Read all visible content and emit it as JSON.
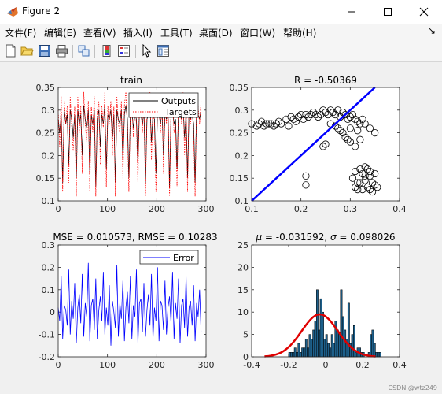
{
  "window": {
    "title": "Figure 2"
  },
  "menu": [
    "文件(F)",
    "编辑(E)",
    "查看(V)",
    "插入(I)",
    "工具(T)",
    "桌面(D)",
    "窗口(W)",
    "帮助(H)"
  ],
  "toolbar_icons": [
    "new-figure-icon",
    "open-file-icon",
    "save-icon",
    "print-icon",
    "link-plot-icon",
    "colorbar-icon",
    "legend-icon",
    "edit-plot-arrow-icon",
    "property-inspector-icon"
  ],
  "watermark": "CSDN @wtz249",
  "colors": {
    "black": "#000000",
    "red_dotted": "#ff0000",
    "blue": "#0000ff",
    "bar_fill": "#1d5f8a",
    "fit_red": "#e00000"
  },
  "chart_data": [
    {
      "type": "line",
      "title": "train",
      "xlim": [
        0,
        300
      ],
      "ylim": [
        0.1,
        0.35
      ],
      "xticks": [
        "0",
        "100",
        "200",
        "300"
      ],
      "yticks": [
        "0.1",
        "0.15",
        "0.2",
        "0.25",
        "0.3",
        "0.35"
      ],
      "legend": {
        "position": "top-right",
        "entries": [
          "Outputs",
          "Targets"
        ]
      },
      "series": [
        {
          "name": "Outputs",
          "style": "solid black",
          "values": [
            0.28,
            0.25,
            0.29,
            0.14,
            0.3,
            0.27,
            0.29,
            0.18,
            0.3,
            0.28,
            0.24,
            0.29,
            0.15,
            0.3,
            0.27,
            0.29,
            0.2,
            0.31,
            0.28,
            0.26,
            0.3,
            0.16,
            0.29,
            0.27,
            0.3,
            0.13,
            0.28,
            0.3,
            0.22,
            0.29,
            0.27,
            0.31,
            0.17,
            0.29,
            0.28,
            0.3,
            0.24,
            0.29,
            0.14,
            0.3,
            0.28,
            0.27,
            0.3,
            0.19,
            0.29,
            0.31,
            0.28,
            0.15,
            0.29,
            0.3,
            0.26,
            0.29,
            0.28,
            0.18,
            0.3,
            0.29,
            0.27,
            0.3,
            0.14,
            0.28,
            0.29,
            0.31,
            0.23,
            0.29,
            0.28,
            0.16,
            0.3,
            0.29,
            0.27,
            0.3,
            0.2,
            0.29,
            0.28,
            0.3,
            0.13,
            0.29,
            0.3,
            0.27,
            0.28,
            0.17,
            0.3,
            0.29,
            0.28,
            0.31,
            0.24,
            0.29,
            0.15,
            0.3,
            0.28,
            0.29,
            0.27,
            0.14,
            0.3,
            0.29,
            0.28,
            0.3
          ]
        },
        {
          "name": "Targets",
          "style": "dotted red",
          "values": [
            0.3,
            0.22,
            0.33,
            0.12,
            0.32,
            0.27,
            0.31,
            0.14,
            0.33,
            0.26,
            0.21,
            0.31,
            0.11,
            0.33,
            0.25,
            0.31,
            0.16,
            0.34,
            0.27,
            0.23,
            0.32,
            0.12,
            0.31,
            0.25,
            0.33,
            0.11,
            0.3,
            0.32,
            0.18,
            0.31,
            0.26,
            0.34,
            0.13,
            0.31,
            0.27,
            0.32,
            0.2,
            0.31,
            0.11,
            0.33,
            0.27,
            0.25,
            0.32,
            0.15,
            0.31,
            0.34,
            0.26,
            0.12,
            0.31,
            0.33,
            0.24,
            0.31,
            0.27,
            0.14,
            0.32,
            0.31,
            0.25,
            0.33,
            0.11,
            0.3,
            0.31,
            0.34,
            0.19,
            0.31,
            0.27,
            0.12,
            0.32,
            0.31,
            0.25,
            0.33,
            0.16,
            0.31,
            0.27,
            0.32,
            0.11,
            0.31,
            0.33,
            0.25,
            0.27,
            0.13,
            0.32,
            0.31,
            0.27,
            0.34,
            0.2,
            0.31,
            0.12,
            0.33,
            0.27,
            0.31,
            0.25,
            0.11,
            0.32,
            0.31,
            0.27,
            0.32
          ]
        }
      ]
    },
    {
      "type": "scatter",
      "title": "R = -0.50369",
      "xlim": [
        0.1,
        0.4
      ],
      "ylim": [
        0.1,
        0.35
      ],
      "xticks": [
        "0.1",
        "0.2",
        "0.3",
        "0.4"
      ],
      "yticks": [
        "0.1",
        "0.15",
        "0.2",
        "0.25",
        "0.3",
        "0.35"
      ],
      "fit_line": {
        "from": [
          0.1,
          0.1
        ],
        "to": [
          0.35,
          0.35
        ]
      },
      "points": [
        [
          0.1,
          0.27
        ],
        [
          0.11,
          0.265
        ],
        [
          0.115,
          0.27
        ],
        [
          0.12,
          0.275
        ],
        [
          0.125,
          0.265
        ],
        [
          0.13,
          0.27
        ],
        [
          0.135,
          0.27
        ],
        [
          0.14,
          0.27
        ],
        [
          0.145,
          0.265
        ],
        [
          0.15,
          0.27
        ],
        [
          0.155,
          0.275
        ],
        [
          0.16,
          0.27
        ],
        [
          0.17,
          0.28
        ],
        [
          0.175,
          0.265
        ],
        [
          0.18,
          0.285
        ],
        [
          0.185,
          0.28
        ],
        [
          0.19,
          0.275
        ],
        [
          0.195,
          0.285
        ],
        [
          0.2,
          0.29
        ],
        [
          0.205,
          0.28
        ],
        [
          0.21,
          0.29
        ],
        [
          0.215,
          0.285
        ],
        [
          0.22,
          0.29
        ],
        [
          0.225,
          0.295
        ],
        [
          0.23,
          0.29
        ],
        [
          0.235,
          0.285
        ],
        [
          0.24,
          0.29
        ],
        [
          0.245,
          0.3
        ],
        [
          0.25,
          0.295
        ],
        [
          0.255,
          0.29
        ],
        [
          0.26,
          0.3
        ],
        [
          0.265,
          0.295
        ],
        [
          0.27,
          0.29
        ],
        [
          0.275,
          0.3
        ],
        [
          0.28,
          0.285
        ],
        [
          0.285,
          0.295
        ],
        [
          0.29,
          0.29
        ],
        [
          0.295,
          0.28
        ],
        [
          0.3,
          0.285
        ],
        [
          0.305,
          0.29
        ],
        [
          0.31,
          0.28
        ],
        [
          0.315,
          0.275
        ],
        [
          0.32,
          0.27
        ],
        [
          0.325,
          0.28
        ],
        [
          0.33,
          0.27
        ],
        [
          0.34,
          0.26
        ],
        [
          0.35,
          0.25
        ],
        [
          0.26,
          0.27
        ],
        [
          0.27,
          0.265
        ],
        [
          0.275,
          0.26
        ],
        [
          0.28,
          0.255
        ],
        [
          0.285,
          0.25
        ],
        [
          0.29,
          0.24
        ],
        [
          0.295,
          0.235
        ],
        [
          0.3,
          0.23
        ],
        [
          0.31,
          0.22
        ],
        [
          0.315,
          0.255
        ],
        [
          0.3,
          0.26
        ],
        [
          0.32,
          0.235
        ],
        [
          0.245,
          0.22
        ],
        [
          0.25,
          0.225
        ],
        [
          0.21,
          0.155
        ],
        [
          0.21,
          0.135
        ],
        [
          0.305,
          0.15
        ],
        [
          0.31,
          0.13
        ],
        [
          0.315,
          0.125
        ],
        [
          0.32,
          0.14
        ],
        [
          0.325,
          0.16
        ],
        [
          0.33,
          0.145
        ],
        [
          0.335,
          0.13
        ],
        [
          0.34,
          0.155
        ],
        [
          0.345,
          0.12
        ],
        [
          0.35,
          0.135
        ],
        [
          0.32,
          0.17
        ],
        [
          0.33,
          0.175
        ],
        [
          0.34,
          0.165
        ],
        [
          0.345,
          0.14
        ],
        [
          0.31,
          0.165
        ],
        [
          0.325,
          0.125
        ],
        [
          0.335,
          0.17
        ],
        [
          0.35,
          0.16
        ],
        [
          0.355,
          0.13
        ],
        [
          0.315,
          0.14
        ],
        [
          0.34,
          0.125
        ],
        [
          0.33,
          0.155
        ]
      ]
    },
    {
      "type": "line",
      "title": "MSE = 0.010573, RMSE = 0.10283",
      "xlim": [
        0,
        300
      ],
      "ylim": [
        -0.2,
        0.3
      ],
      "xticks": [
        "0",
        "100",
        "200",
        "300"
      ],
      "yticks": [
        "-0.2",
        "-0.1",
        "0",
        "0.1",
        "0.2",
        "0.3"
      ],
      "legend": {
        "position": "top-right",
        "entries": [
          "Error"
        ]
      },
      "series": [
        {
          "name": "Error",
          "style": "solid blue",
          "values": [
            0.02,
            -0.04,
            0.16,
            -0.12,
            0.03,
            0.01,
            -0.06,
            0.19,
            -0.1,
            0.05,
            -0.03,
            0.13,
            -0.14,
            0.02,
            0.08,
            -0.05,
            0.17,
            -0.11,
            0.04,
            -0.02,
            0.22,
            -0.13,
            0.03,
            0.06,
            -0.08,
            0.15,
            -0.12,
            0.01,
            0.07,
            -0.04,
            0.18,
            -0.1,
            0.02,
            -0.06,
            0.12,
            -0.15,
            0.05,
            0.0,
            -0.07,
            0.21,
            -0.11,
            0.04,
            -0.03,
            0.14,
            -0.13,
            0.02,
            0.09,
            -0.05,
            0.16,
            -0.12,
            0.03,
            -0.02,
            0.19,
            -0.14,
            0.04,
            0.06,
            -0.09,
            0.13,
            -0.11,
            0.01,
            0.08,
            -0.06,
            0.17,
            -0.12,
            0.02,
            -0.04,
            0.2,
            -0.13,
            0.05,
            0.03,
            -0.08,
            0.14,
            -0.1,
            0.02,
            0.07,
            -0.05,
            0.18,
            -0.12,
            0.04,
            -0.03,
            0.15,
            -0.14,
            0.03,
            0.06,
            -0.07,
            0.16,
            -0.11,
            0.02,
            0.05,
            -0.06,
            0.12,
            -0.13,
            0.04,
            -0.02,
            0.1,
            -0.09
          ]
        }
      ]
    },
    {
      "type": "bar",
      "title_mu_symbol": "μ",
      "title_mu_value": "-0.031592",
      "title_sigma_symbol": "σ",
      "title_sigma_value": "0.098026",
      "xlim": [
        -0.4,
        0.4
      ],
      "ylim": [
        0,
        25
      ],
      "xticks": [
        "-0.4",
        "-0.2",
        "0",
        "0.2",
        "0.4"
      ],
      "yticks": [
        "0",
        "5",
        "10",
        "15",
        "20",
        "25"
      ],
      "bin_start": -0.2,
      "bin_width": 0.01,
      "values": [
        1,
        1,
        1,
        2,
        1,
        3,
        1,
        2,
        2,
        4,
        2,
        5,
        4,
        6,
        8,
        15,
        6,
        13,
        10,
        4,
        5,
        3,
        2,
        5,
        3,
        8,
        6,
        5,
        15,
        9,
        6,
        4,
        12,
        3,
        5,
        7,
        1,
        2,
        2,
        1,
        1,
        0,
        0,
        1,
        5,
        6,
        3,
        1,
        1,
        1
      ],
      "fit_curve": {
        "type": "normal",
        "mu": -0.031592,
        "sigma": 0.098026,
        "peak": 9.5,
        "x_range": [
          -0.33,
          0.27
        ]
      }
    }
  ]
}
